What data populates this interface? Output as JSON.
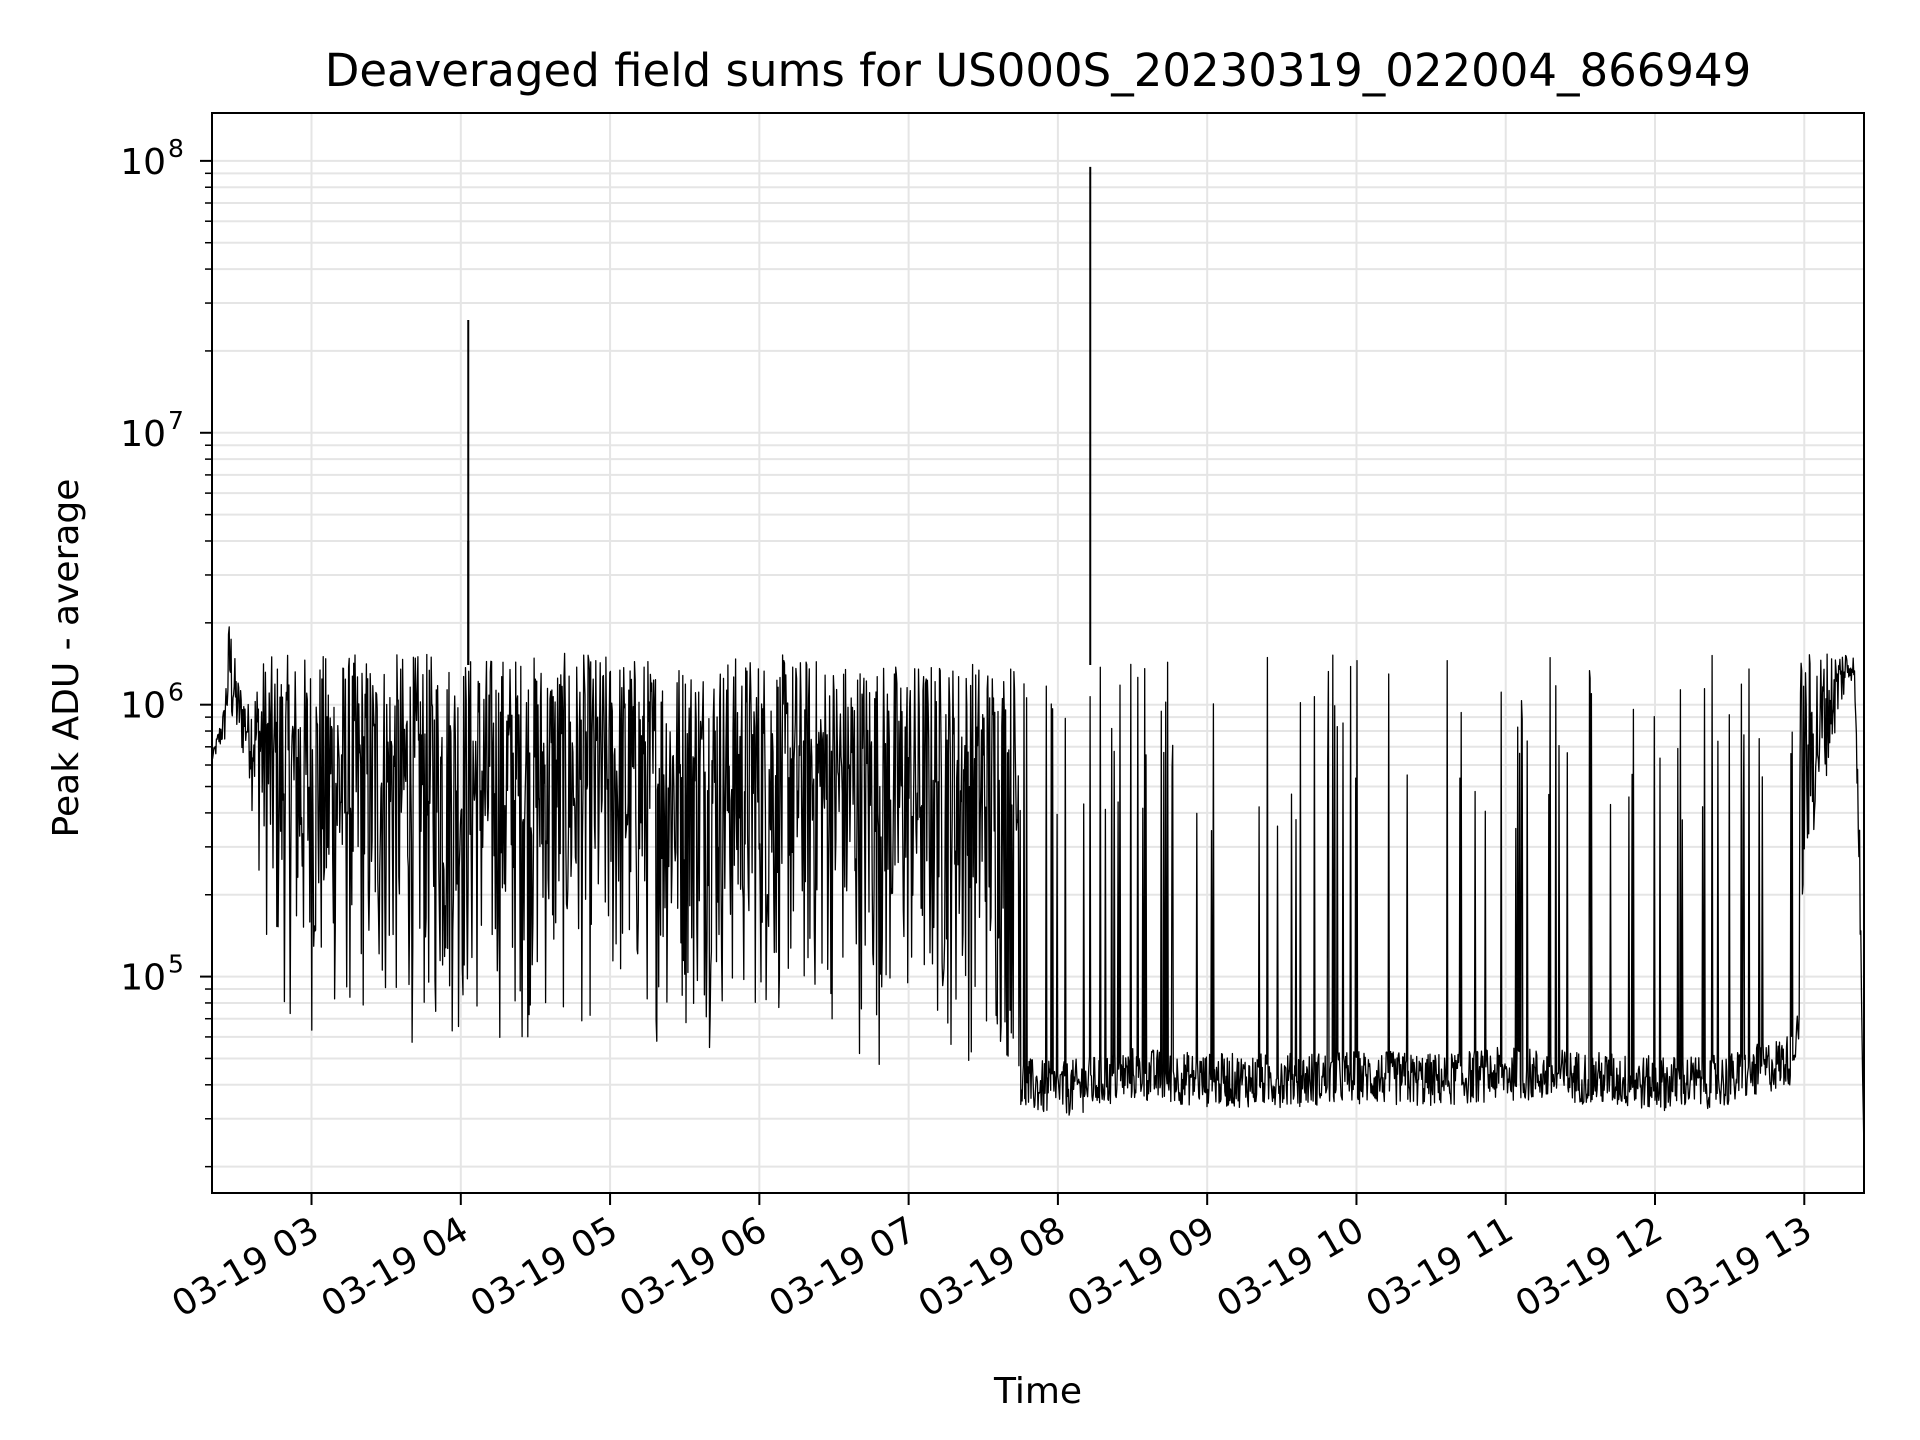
{
  "chart_data": {
    "type": "line",
    "title": "Deaveraged field sums for US000S_20230319_022004_866949",
    "xlabel": "Time",
    "ylabel": "Peak ADU - average",
    "yscale": "log",
    "grid": true,
    "line_color": "#000000",
    "grid_color": "#e5e5e5",
    "xlim": [
      "03-19 02:20",
      "03-19 13:24"
    ],
    "ylim": [
      16000,
      150000000
    ],
    "x_ticks": [
      "03-19 03",
      "03-19 04",
      "03-19 05",
      "03-19 06",
      "03-19 07",
      "03-19 08",
      "03-19 09",
      "03-19 10",
      "03-19 11",
      "03-19 12",
      "03-19 13"
    ],
    "x_tick_times": [
      "03-19 03:00",
      "03-19 04:00",
      "03-19 05:00",
      "03-19 06:00",
      "03-19 07:00",
      "03-19 08:00",
      "03-19 09:00",
      "03-19 10:00",
      "03-19 11:00",
      "03-19 12:00",
      "03-19 13:00"
    ],
    "y_ticks": [
      {
        "value": 100000,
        "base": "10",
        "exp": "5"
      },
      {
        "value": 1000000,
        "base": "10",
        "exp": "6"
      },
      {
        "value": 10000000,
        "base": "10",
        "exp": "7"
      },
      {
        "value": 100000000,
        "base": "10",
        "exp": "8"
      }
    ],
    "series": [
      {
        "upper_envelope": [
          [
            "03-19 02:20",
            650000
          ],
          [
            "03-19 02:25",
            1000000
          ],
          [
            "03-19 02:27",
            2200000
          ],
          [
            "03-19 02:30",
            1300000
          ],
          [
            "03-19 02:35",
            1000000
          ],
          [
            "03-19 02:40",
            1500000
          ],
          [
            "03-19 03:00",
            1550000
          ],
          [
            "03-19 03:30",
            1550000
          ],
          [
            "03-19 04:00",
            1550000
          ],
          [
            "03-19 04:30",
            1550000
          ],
          [
            "03-19 05:00",
            1550000
          ],
          [
            "03-19 05:30",
            1500000
          ],
          [
            "03-19 06:00",
            1550000
          ],
          [
            "03-19 06:30",
            1500000
          ],
          [
            "03-19 07:00",
            1450000
          ],
          [
            "03-19 07:30",
            1500000
          ],
          [
            "03-19 08:00",
            1550000
          ],
          [
            "03-19 09:00",
            1550000
          ],
          [
            "03-19 10:00",
            1550000
          ],
          [
            "03-19 11:00",
            1550000
          ],
          [
            "03-19 12:00",
            1550000
          ],
          [
            "03-19 12:50",
            1550000
          ],
          [
            "03-19 13:18",
            1650000
          ],
          [
            "03-19 13:20",
            1500000
          ],
          [
            "03-19 13:22",
            500000
          ],
          [
            "03-19 13:24",
            22000
          ]
        ],
        "lower_envelope": [
          [
            "03-19 02:20",
            600000
          ],
          [
            "03-19 02:25",
            650000
          ],
          [
            "03-19 02:30",
            600000
          ],
          [
            "03-19 02:35",
            500000
          ],
          [
            "03-19 02:40",
            150000
          ],
          [
            "03-19 02:45",
            70000
          ],
          [
            "03-19 03:00",
            50000
          ],
          [
            "03-19 03:30",
            50000
          ],
          [
            "03-19 04:00",
            45000
          ],
          [
            "03-19 04:30",
            50000
          ],
          [
            "03-19 05:00",
            55000
          ],
          [
            "03-19 05:30",
            50000
          ],
          [
            "03-19 06:00",
            55000
          ],
          [
            "03-19 06:30",
            55000
          ],
          [
            "03-19 06:50",
            40000
          ],
          [
            "03-19 07:00",
            50000
          ],
          [
            "03-19 07:30",
            40000
          ],
          [
            "03-19 07:45",
            32000
          ],
          [
            "03-19 08:00",
            30000
          ],
          [
            "03-19 08:30",
            35000
          ],
          [
            "03-19 09:00",
            33000
          ],
          [
            "03-19 09:30",
            33000
          ],
          [
            "03-19 10:00",
            34000
          ],
          [
            "03-19 10:30",
            33000
          ],
          [
            "03-19 11:00",
            35000
          ],
          [
            "03-19 11:30",
            34000
          ],
          [
            "03-19 12:00",
            32000
          ],
          [
            "03-19 12:30",
            33000
          ],
          [
            "03-19 12:55",
            40000
          ],
          [
            "03-19 13:00",
            80000
          ],
          [
            "03-19 13:05",
            200000
          ],
          [
            "03-19 13:10",
            400000
          ],
          [
            "03-19 13:15",
            800000
          ],
          [
            "03-19 13:20",
            1200000
          ],
          [
            "03-19 13:24",
            22000
          ]
        ],
        "spikes": [
          {
            "x": "03-19 04:03",
            "y": 26000000
          },
          {
            "x": "03-19 04:03",
            "y": 4000000
          },
          {
            "x": "03-19 08:13",
            "y": 95000000
          }
        ]
      }
    ]
  }
}
